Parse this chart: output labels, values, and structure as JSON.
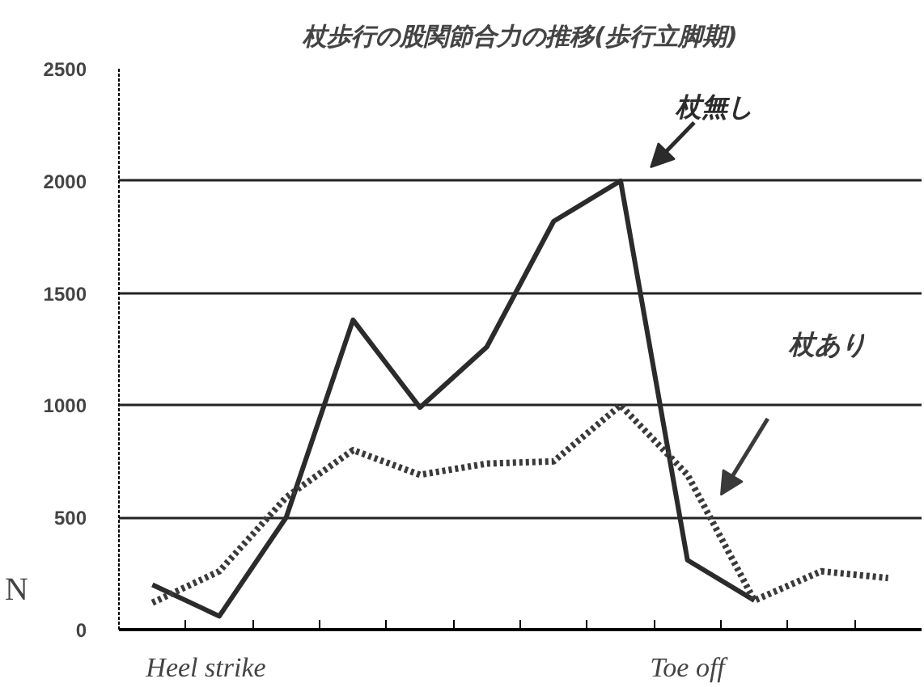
{
  "chart_data": {
    "type": "line",
    "title": "杖歩行の股関節合力の推移(歩行立脚期)",
    "ylabel": "N",
    "categories": [
      null,
      null,
      null,
      null,
      null,
      null,
      null,
      null,
      null,
      null,
      null,
      null
    ],
    "series": [
      {
        "name": "杖無し",
        "color": "#2b2b2b",
        "line_style": "solid",
        "values": [
          200,
          60,
          500,
          1380,
          990,
          1260,
          1820,
          2000,
          310,
          130,
          null,
          null
        ]
      },
      {
        "name": "杖あり",
        "color": "#3a3a3a",
        "line_style": "dotted",
        "values": [
          120,
          260,
          590,
          800,
          690,
          740,
          750,
          1000,
          690,
          130,
          260,
          230
        ]
      }
    ],
    "ylim": [
      0,
      2500
    ],
    "yticks": [
      0,
      500,
      1000,
      1500,
      2000,
      2500
    ],
    "annotations": [
      "Heel strike",
      "Toe off"
    ],
    "grid": "y",
    "marker": "none"
  }
}
